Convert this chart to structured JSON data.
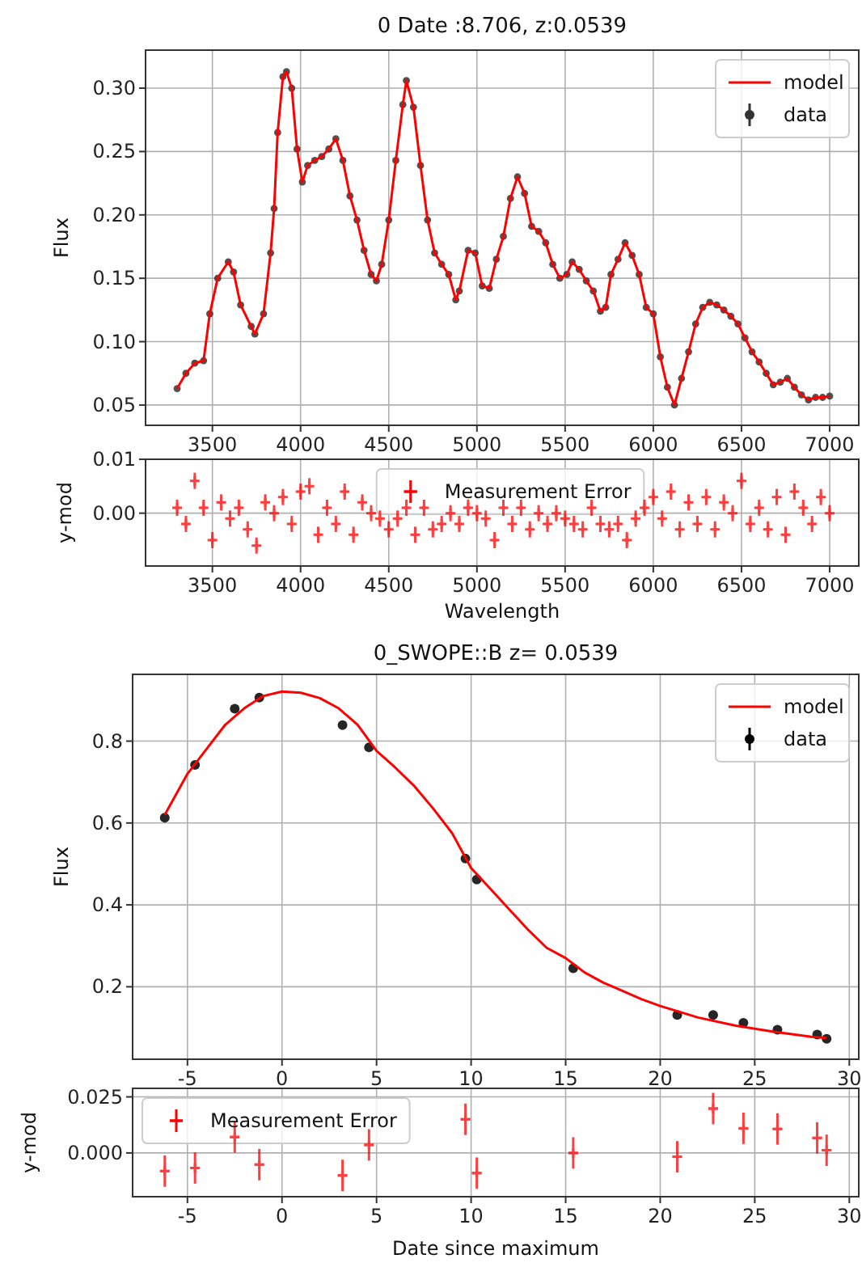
{
  "chart_data": [
    {
      "type": "line",
      "title": "0 Date :8.706, z:0.0539",
      "ylabel": "Flux",
      "xlim": [
        3121,
        7165
      ],
      "xticks": [
        3500,
        4000,
        4500,
        5000,
        5500,
        6000,
        6500,
        7000
      ],
      "ylim": [
        0.034,
        0.33
      ],
      "yticks": [
        {
          "value": 0.05,
          "label": "0.05"
        },
        {
          "value": 0.1,
          "label": "0.10"
        },
        {
          "value": 0.15,
          "label": "0.15"
        },
        {
          "value": 0.2,
          "label": "0.20"
        },
        {
          "value": 0.25,
          "label": "0.25"
        },
        {
          "value": 0.3,
          "label": "0.30"
        }
      ],
      "grid": true,
      "legend": "top right",
      "x": [
        3300,
        3350,
        3400,
        3450,
        3485,
        3530,
        3590,
        3620,
        3660,
        3720,
        3741,
        3790,
        3830,
        3850,
        3870,
        3900,
        3920,
        3950,
        3980,
        4010,
        4040,
        4080,
        4120,
        4160,
        4200,
        4240,
        4280,
        4320,
        4360,
        4400,
        4430,
        4460,
        4500,
        4540,
        4580,
        4600,
        4640,
        4680,
        4720,
        4760,
        4800,
        4840,
        4880,
        4900,
        4950,
        4990,
        5030,
        5070,
        5110,
        5150,
        5190,
        5230,
        5270,
        5310,
        5350,
        5390,
        5430,
        5470,
        5510,
        5540,
        5580,
        5620,
        5660,
        5700,
        5730,
        5760,
        5800,
        5840,
        5880,
        5920,
        5960,
        6000,
        6040,
        6080,
        6120,
        6160,
        6200,
        6240,
        6280,
        6320,
        6360,
        6400,
        6440,
        6480,
        6520,
        6560,
        6600,
        6640,
        6680,
        6720,
        6760,
        6800,
        6840,
        6880,
        6920,
        6960,
        7000
      ],
      "series": [
        {
          "name": "model",
          "color": "#ff0000",
          "values": [
            0.063,
            0.075,
            0.083,
            0.085,
            0.122,
            0.15,
            0.163,
            0.155,
            0.129,
            0.112,
            0.106,
            0.122,
            0.17,
            0.205,
            0.265,
            0.309,
            0.313,
            0.3,
            0.252,
            0.226,
            0.239,
            0.243,
            0.246,
            0.252,
            0.26,
            0.243,
            0.215,
            0.196,
            0.172,
            0.153,
            0.148,
            0.161,
            0.196,
            0.243,
            0.287,
            0.306,
            0.285,
            0.239,
            0.196,
            0.17,
            0.161,
            0.153,
            0.133,
            0.14,
            0.172,
            0.17,
            0.144,
            0.142,
            0.165,
            0.183,
            0.213,
            0.23,
            0.217,
            0.191,
            0.187,
            0.178,
            0.161,
            0.15,
            0.153,
            0.163,
            0.157,
            0.148,
            0.14,
            0.124,
            0.127,
            0.153,
            0.165,
            0.178,
            0.168,
            0.153,
            0.127,
            0.122,
            0.088,
            0.064,
            0.05,
            0.071,
            0.092,
            0.114,
            0.127,
            0.131,
            0.129,
            0.125,
            0.12,
            0.114,
            0.103,
            0.092,
            0.084,
            0.075,
            0.066,
            0.068,
            0.071,
            0.064,
            0.058,
            0.054,
            0.056,
            0.056,
            0.057
          ]
        },
        {
          "name": "data",
          "type": "scatter",
          "marker": "circle",
          "color": "#333333",
          "values": [
            0.063,
            0.075,
            0.083,
            0.085,
            0.122,
            0.15,
            0.163,
            0.155,
            0.129,
            0.112,
            0.106,
            0.122,
            0.17,
            0.205,
            0.265,
            0.309,
            0.313,
            0.3,
            0.252,
            0.226,
            0.239,
            0.243,
            0.246,
            0.252,
            0.26,
            0.243,
            0.215,
            0.196,
            0.172,
            0.153,
            0.148,
            0.161,
            0.196,
            0.243,
            0.287,
            0.306,
            0.285,
            0.239,
            0.196,
            0.17,
            0.161,
            0.153,
            0.133,
            0.14,
            0.172,
            0.17,
            0.144,
            0.142,
            0.165,
            0.183,
            0.213,
            0.23,
            0.217,
            0.191,
            0.187,
            0.178,
            0.161,
            0.15,
            0.153,
            0.163,
            0.157,
            0.148,
            0.14,
            0.124,
            0.127,
            0.153,
            0.165,
            0.178,
            0.168,
            0.153,
            0.127,
            0.122,
            0.088,
            0.064,
            0.05,
            0.071,
            0.092,
            0.114,
            0.127,
            0.131,
            0.129,
            0.125,
            0.12,
            0.114,
            0.103,
            0.092,
            0.084,
            0.075,
            0.066,
            0.068,
            0.071,
            0.064,
            0.058,
            0.054,
            0.056,
            0.056,
            0.057
          ]
        }
      ]
    },
    {
      "type": "scatter",
      "xlabel": "Wavelength",
      "ylabel": "y-mod",
      "xlim": [
        3121,
        7165
      ],
      "xticks": [
        3500,
        4000,
        4500,
        5000,
        5500,
        6000,
        6500,
        7000
      ],
      "ylim": [
        -0.0098,
        0.01
      ],
      "yticks": [
        {
          "value": 0,
          "label": "0.00"
        },
        0.01
      ],
      "grid": true,
      "legend": "top",
      "x": [
        3300,
        3350,
        3400,
        3450,
        3500,
        3550,
        3600,
        3650,
        3700,
        3750,
        3800,
        3850,
        3900,
        3950,
        4000,
        4050,
        4100,
        4150,
        4200,
        4250,
        4300,
        4350,
        4400,
        4450,
        4500,
        4550,
        4600,
        4650,
        4700,
        4750,
        4800,
        4850,
        4900,
        4950,
        5000,
        5050,
        5100,
        5150,
        5200,
        5250,
        5300,
        5350,
        5400,
        5450,
        5500,
        5550,
        5600,
        5650,
        5700,
        5750,
        5800,
        5850,
        5900,
        5950,
        6000,
        6050,
        6100,
        6150,
        6200,
        6250,
        6300,
        6350,
        6400,
        6450,
        6500,
        6550,
        6600,
        6650,
        6700,
        6750,
        6800,
        6850,
        6900,
        6950,
        7000
      ],
      "series": [
        {
          "name": "Measurement Error",
          "marker": "cross",
          "color": "#ff0000",
          "values": [
            0.001,
            -0.002,
            0.006,
            0.001,
            -0.005,
            0.002,
            -0.001,
            0.001,
            -0.003,
            -0.006,
            0.002,
            0.0,
            0.003,
            -0.002,
            0.004,
            0.005,
            -0.004,
            0.001,
            -0.002,
            0.004,
            -0.004,
            0.002,
            0.0,
            -0.001,
            -0.003,
            -0.001,
            0.001,
            -0.004,
            0.001,
            -0.003,
            -0.002,
            0.0,
            -0.002,
            0.001,
            0.0,
            -0.001,
            -0.005,
            0.001,
            -0.002,
            0.001,
            -0.003,
            0.0,
            -0.002,
            0.0,
            -0.001,
            -0.002,
            -0.003,
            0.001,
            -0.002,
            -0.003,
            -0.002,
            -0.005,
            -0.001,
            0.001,
            0.003,
            -0.001,
            0.004,
            -0.003,
            0.002,
            -0.002,
            0.003,
            -0.003,
            0.002,
            0.0,
            0.006,
            -0.002,
            0.001,
            -0.003,
            0.003,
            -0.004,
            0.004,
            0.001,
            -0.002,
            0.003,
            0.0
          ],
          "errors": [
            0.0015,
            0.0015,
            0.0015,
            0.0015,
            0.0015,
            0.0015,
            0.0015,
            0.0015,
            0.0015,
            0.0015,
            0.0015,
            0.0015,
            0.0015,
            0.0015,
            0.0015,
            0.0015,
            0.0015,
            0.0015,
            0.0015,
            0.0015,
            0.0015,
            0.0015,
            0.0015,
            0.0015,
            0.0015,
            0.0015,
            0.0015,
            0.0015,
            0.0015,
            0.0015,
            0.0015,
            0.0015,
            0.0015,
            0.0015,
            0.0015,
            0.0015,
            0.0015,
            0.0015,
            0.0015,
            0.0015,
            0.0015,
            0.0015,
            0.0015,
            0.0015,
            0.0015,
            0.0015,
            0.0015,
            0.0015,
            0.0015,
            0.0015,
            0.0015,
            0.0015,
            0.0015,
            0.0015,
            0.0015,
            0.0015,
            0.0015,
            0.0015,
            0.0015,
            0.0015,
            0.0015,
            0.0015,
            0.0015,
            0.0015,
            0.0015,
            0.0015,
            0.0015,
            0.0015,
            0.0015,
            0.0015,
            0.0015,
            0.0015,
            0.0015,
            0.0015,
            0.0015
          ],
          "xerrors": [
            15,
            15,
            15,
            15,
            15,
            15,
            15,
            15,
            15,
            15,
            15,
            15,
            15,
            15,
            15,
            15,
            15,
            15,
            15,
            15,
            15,
            15,
            15,
            15,
            15,
            15,
            15,
            15,
            15,
            15,
            15,
            15,
            15,
            15,
            15,
            15,
            15,
            15,
            15,
            15,
            15,
            15,
            15,
            15,
            15,
            15,
            15,
            15,
            15,
            15,
            15,
            15,
            15,
            15,
            15,
            15,
            15,
            15,
            15,
            15,
            15,
            15,
            15,
            15,
            15,
            15,
            15,
            15,
            15,
            15,
            15,
            15,
            15,
            15,
            15
          ]
        }
      ]
    },
    {
      "type": "line",
      "title": "0_SWOPE::B  z= 0.0539",
      "ylabel": "Flux",
      "xlim": [
        -7.9,
        30.5
      ],
      "xticks": [
        -5,
        0,
        5,
        10,
        15,
        20,
        25,
        30
      ],
      "ylim": [
        0.023,
        0.963
      ],
      "yticks": [
        0.2,
        0.4,
        0.6,
        0.8
      ],
      "grid": true,
      "legend": "top right",
      "series": [
        {
          "name": "model",
          "color": "#ff0000",
          "x": [
            -6.2,
            -5,
            -4,
            -3,
            -2,
            -1,
            0,
            1,
            2,
            3,
            4,
            5,
            6,
            7,
            8,
            9,
            10,
            11,
            12,
            13,
            14,
            15,
            16,
            17,
            18,
            19,
            20,
            22,
            24,
            26,
            28,
            28.8
          ],
          "values": [
            0.62,
            0.72,
            0.78,
            0.84,
            0.88,
            0.91,
            0.921,
            0.918,
            0.905,
            0.88,
            0.84,
            0.776,
            0.735,
            0.69,
            0.635,
            0.575,
            0.49,
            0.44,
            0.39,
            0.34,
            0.295,
            0.27,
            0.235,
            0.21,
            0.19,
            0.17,
            0.153,
            0.125,
            0.105,
            0.09,
            0.078,
            0.075
          ]
        },
        {
          "name": "data",
          "type": "scatter",
          "marker": "circle",
          "color": "#000000",
          "x": [
            -6.2,
            -4.6,
            -2.5,
            -1.2,
            3.2,
            4.6,
            9.7,
            10.3,
            15.4,
            20.9,
            22.8,
            24.4,
            26.2,
            28.3,
            28.8
          ],
          "values": [
            0.613,
            0.742,
            0.879,
            0.906,
            0.839,
            0.785,
            0.513,
            0.462,
            0.245,
            0.131,
            0.131,
            0.112,
            0.095,
            0.083,
            0.073
          ]
        }
      ]
    },
    {
      "type": "scatter",
      "xlabel": "Date since maximum",
      "ylabel": "y-mod",
      "xlim": [
        -7.9,
        30.5
      ],
      "xticks": [
        -5,
        0,
        5,
        10,
        15,
        20,
        25,
        30
      ],
      "ylim": [
        -0.0195,
        0.0288
      ],
      "yticks": [
        {
          "value": 0,
          "label": "0.000"
        },
        0.025
      ],
      "grid": true,
      "legend": "top left",
      "series": [
        {
          "name": "Measurement Error",
          "marker": "cross",
          "color": "#ff0000",
          "x": [
            -6.2,
            -4.6,
            -2.5,
            -1.2,
            3.2,
            4.6,
            9.7,
            10.3,
            15.4,
            20.9,
            22.8,
            24.4,
            26.2,
            28.3,
            28.8
          ],
          "values": [
            -0.0081,
            -0.0067,
            0.0071,
            -0.0052,
            -0.01,
            0.0036,
            0.015,
            -0.009,
            0.0,
            -0.0017,
            0.0198,
            0.011,
            0.0107,
            0.0067,
            0.0012
          ],
          "errors": [
            0.007,
            0.007,
            0.007,
            0.007,
            0.007,
            0.007,
            0.007,
            0.007,
            0.007,
            0.007,
            0.007,
            0.007,
            0.007,
            0.007,
            0.007
          ],
          "xerrors": [
            0.25,
            0.25,
            0.25,
            0.25,
            0.25,
            0.25,
            0.25,
            0.25,
            0.25,
            0.25,
            0.25,
            0.25,
            0.25,
            0.25,
            0.25
          ]
        }
      ]
    }
  ]
}
